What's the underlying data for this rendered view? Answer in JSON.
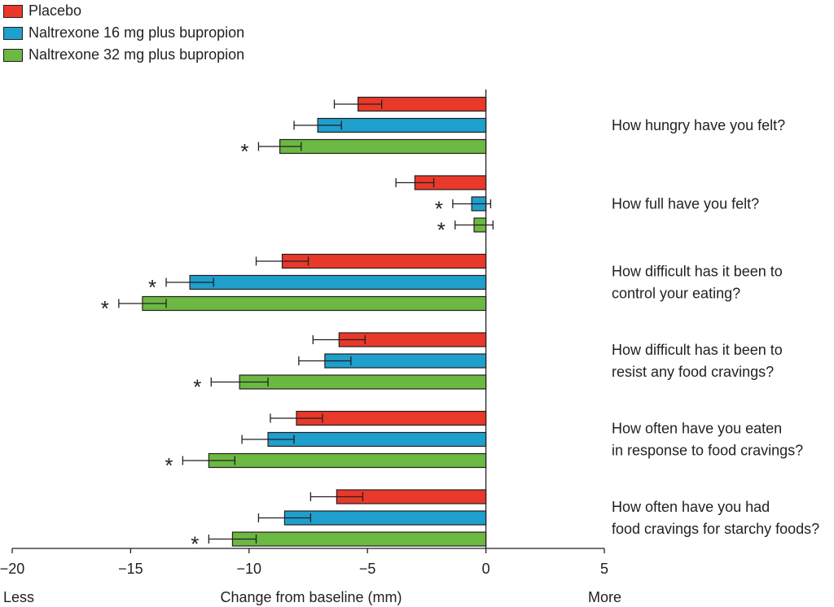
{
  "legend": [
    {
      "label": "Placebo",
      "color": "#e8392a"
    },
    {
      "label": "Naltrexone 16 mg plus bupropion",
      "color": "#1f9fcc"
    },
    {
      "label": "Naltrexone 32 mg plus bupropion",
      "color": "#6bb842"
    }
  ],
  "axis": {
    "xlabel": "Change from baseline (mm)",
    "left_label": "Less",
    "right_label": "More",
    "ticks": [
      "−20",
      "−15",
      "−10",
      "−5",
      "0",
      "5"
    ]
  },
  "chart_data": {
    "type": "bar",
    "orientation": "horizontal",
    "xlim": [
      -20,
      5
    ],
    "xlabel": "Change from baseline (mm)",
    "categories": [
      [
        "How hungry have you felt?"
      ],
      [
        "How full have you felt?"
      ],
      [
        "How difficult has it been to",
        "control your eating?"
      ],
      [
        "How difficult has it been to",
        "resist any food cravings?"
      ],
      [
        "How often have you eaten",
        "in response to food cravings?"
      ],
      [
        "How often have you had",
        "food cravings for starchy foods?"
      ]
    ],
    "series": [
      {
        "name": "Placebo",
        "color": "#e8392a",
        "values": [
          -5.4,
          -3.0,
          -8.6,
          -6.2,
          -8.0,
          -6.3
        ],
        "error": [
          1.0,
          0.8,
          1.1,
          1.1,
          1.1,
          1.1
        ],
        "significant": [
          false,
          false,
          false,
          false,
          false,
          false
        ]
      },
      {
        "name": "Naltrexone 16 mg plus bupropion",
        "color": "#1f9fcc",
        "values": [
          -7.1,
          -0.6,
          -12.5,
          -6.8,
          -9.2,
          -8.5
        ],
        "error": [
          1.0,
          0.8,
          1.0,
          1.1,
          1.1,
          1.1
        ],
        "significant": [
          false,
          true,
          true,
          false,
          false,
          false
        ]
      },
      {
        "name": "Naltrexone 32 mg plus bupropion",
        "color": "#6bb842",
        "values": [
          -8.7,
          -0.5,
          -14.5,
          -10.4,
          -11.7,
          -10.7
        ],
        "error": [
          0.9,
          0.8,
          1.0,
          1.2,
          1.1,
          1.0
        ],
        "significant": [
          true,
          true,
          true,
          true,
          true,
          true
        ]
      }
    ],
    "significance_marker": "*",
    "grid": false
  }
}
